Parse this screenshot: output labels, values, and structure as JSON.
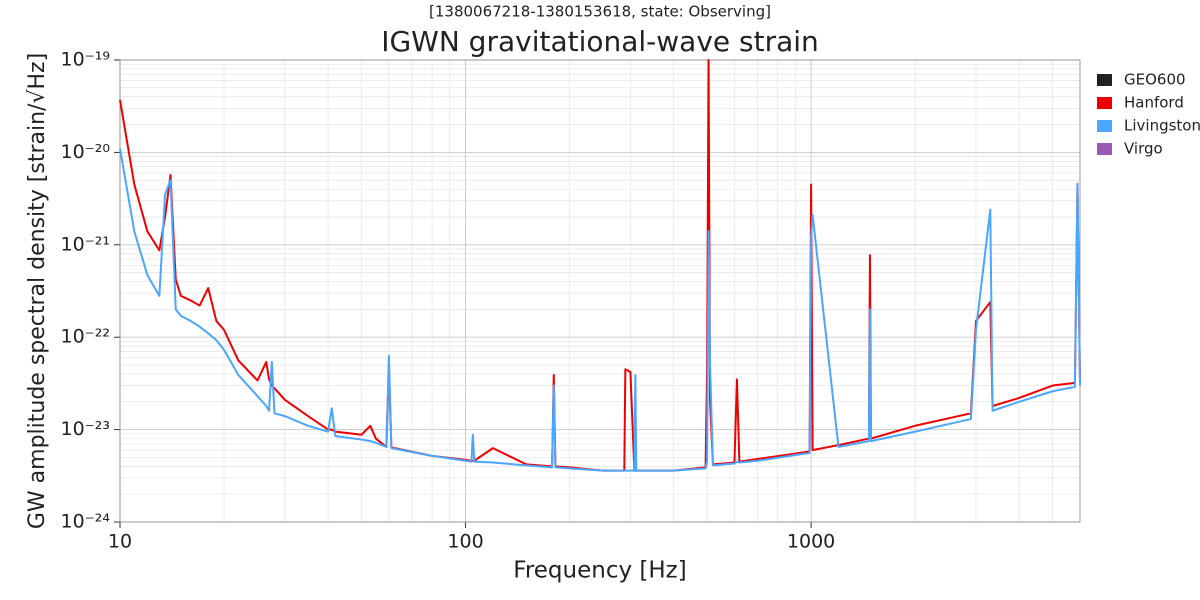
{
  "chart_data": {
    "type": "line",
    "subtitle": "[1380067218-1380153618, state: Observing]",
    "title": "IGWN gravitational-wave strain",
    "x_label": "Frequency [Hz]",
    "y_label": "GW amplitude spectral density [strain/√Hz]",
    "x_log": true,
    "y_log": true,
    "grid": true,
    "minor_grid": true,
    "legend": "right",
    "xlim": [
      10,
      6000
    ],
    "ylim": [
      1e-24,
      1e-19
    ],
    "xticks": [
      10,
      100,
      1000
    ],
    "yticks": [
      {
        "value": 1e-24,
        "label": "10⁻²⁴"
      },
      {
        "value": 1e-23,
        "label": "10⁻²³"
      },
      {
        "value": 1e-22,
        "label": "10⁻²²"
      },
      {
        "value": 1e-21,
        "label": "10⁻²¹"
      },
      {
        "value": 1e-20,
        "label": "10⁻²⁰"
      },
      {
        "value": 1e-19,
        "label": "10⁻¹⁹"
      }
    ],
    "x": [
      10,
      11,
      12,
      13,
      13.5,
      14,
      14.5,
      15,
      16,
      17,
      18,
      19,
      20,
      22,
      25,
      26.5,
      27,
      27.5,
      28,
      30,
      35,
      40,
      41,
      42,
      50,
      53,
      55,
      59,
      60,
      61,
      80,
      100,
      104,
      105,
      106,
      120,
      150,
      178,
      180,
      182,
      200,
      250,
      288,
      290,
      300,
      308,
      310,
      312,
      400,
      495,
      500,
      505,
      510,
      520,
      600,
      610,
      620,
      700,
      990,
      1000,
      1010,
      1200,
      1470,
      1480,
      1490,
      2000,
      2900,
      3000,
      3300,
      3350,
      4000,
      5000,
      5800,
      5900,
      6000
    ],
    "series": [
      {
        "name": "GEO600",
        "color": "#222222",
        "values": [
          null,
          null,
          null,
          null,
          null,
          null,
          null,
          null,
          null,
          null,
          null,
          null,
          null,
          null,
          null,
          null,
          null,
          null,
          null,
          null,
          null,
          null,
          null,
          null,
          null,
          null,
          null,
          null,
          null,
          null,
          null,
          null,
          null,
          null,
          null,
          null,
          null,
          null,
          null,
          null,
          null,
          null,
          null,
          null,
          null,
          null,
          null,
          null,
          null,
          null,
          null,
          null,
          null,
          null,
          null,
          null,
          null,
          null,
          null,
          null,
          null,
          null,
          null,
          null,
          null,
          null,
          null,
          null,
          null,
          null,
          null,
          null,
          null,
          null,
          null
        ]
      },
      {
        "name": "Hanford",
        "color": "#ee0000",
        "values": [
          3.7e-20,
          4.5e-21,
          1.4e-21,
          8.7e-22,
          2e-21,
          5.7e-21,
          4.2e-22,
          2.8e-22,
          2.5e-22,
          2.2e-22,
          3.4e-22,
          1.5e-22,
          1.2e-22,
          5.6e-23,
          3.4e-23,
          5.4e-23,
          3.5e-23,
          3e-23,
          2.8e-23,
          2.1e-23,
          1.4e-23,
          1e-23,
          1e-23,
          9.5e-24,
          8.8e-24,
          1.1e-23,
          8e-24,
          6.5e-24,
          5e-23,
          6.4e-24,
          5.2e-24,
          4.7e-24,
          4.6e-24,
          4.6e-24,
          4.6e-24,
          6.3e-24,
          4.2e-24,
          4e-24,
          3.9e-23,
          4e-24,
          3.9e-24,
          3.6e-24,
          3.6e-24,
          4.5e-23,
          4.2e-23,
          3.6e-24,
          3.6e-24,
          3.6e-24,
          3.6e-24,
          3.9e-24,
          4.5e-23,
          1e-19,
          2e-23,
          4.2e-24,
          4.4e-24,
          3.5e-23,
          4.5e-24,
          4.8e-24,
          5.8e-24,
          4.5e-21,
          6e-24,
          6.8e-24,
          8e-24,
          7.7e-22,
          8e-24,
          1.1e-23,
          1.5e-23,
          1.5e-22,
          2.4e-22,
          1.8e-23,
          2.2e-23,
          3e-23,
          3.2e-23,
          4.5e-21,
          3.3e-23
        ]
      },
      {
        "name": "Livingston",
        "color": "#4ba6ff",
        "values": [
          1.1e-20,
          1.4e-21,
          4.7e-22,
          2.8e-22,
          3.5e-21,
          5e-21,
          2e-22,
          1.7e-22,
          1.5e-22,
          1.3e-22,
          1.1e-22,
          9.3e-23,
          7.3e-23,
          3.9e-23,
          2.3e-23,
          1.8e-23,
          1.6e-23,
          5.4e-23,
          1.5e-23,
          1.4e-23,
          1.1e-23,
          9.5e-24,
          1.7e-23,
          8.5e-24,
          7.8e-24,
          7.5e-24,
          7.2e-24,
          6.5e-24,
          6.3e-23,
          6.3e-24,
          5.2e-24,
          4.6e-24,
          4.5e-24,
          8.8e-24,
          4.5e-24,
          4.4e-24,
          4.1e-24,
          3.9e-24,
          3e-23,
          3.9e-24,
          3.8e-24,
          3.6e-24,
          3.6e-24,
          3.6e-24,
          3.6e-24,
          3.6e-24,
          3.9e-23,
          3.6e-24,
          3.6e-24,
          3.8e-24,
          4.5e-24,
          1.4e-21,
          5e-23,
          4.1e-24,
          4.3e-24,
          4.5e-24,
          4.4e-24,
          4.6e-24,
          5.6e-24,
          1.2e-21,
          2.1e-21,
          6.5e-24,
          7.5e-24,
          2e-22,
          7.5e-24,
          9.5e-24,
          1.3e-23,
          1.2e-22,
          2.4e-21,
          1.6e-23,
          2e-23,
          2.6e-23,
          2.9e-23,
          4.6e-21,
          3e-23
        ]
      },
      {
        "name": "Virgo",
        "color": "#9b59b6",
        "values": [
          null,
          null,
          null,
          null,
          null,
          null,
          null,
          null,
          null,
          null,
          null,
          null,
          null,
          null,
          null,
          null,
          null,
          null,
          null,
          null,
          null,
          null,
          null,
          null,
          null,
          null,
          null,
          null,
          null,
          null,
          null,
          null,
          null,
          null,
          null,
          null,
          null,
          null,
          null,
          null,
          null,
          null,
          null,
          null,
          null,
          null,
          null,
          null,
          null,
          null,
          null,
          null,
          null,
          null,
          null,
          null,
          null,
          null,
          null,
          null,
          null,
          null,
          null,
          null,
          null,
          null,
          null,
          null,
          null,
          null,
          null,
          null,
          null,
          null,
          null
        ]
      }
    ]
  }
}
